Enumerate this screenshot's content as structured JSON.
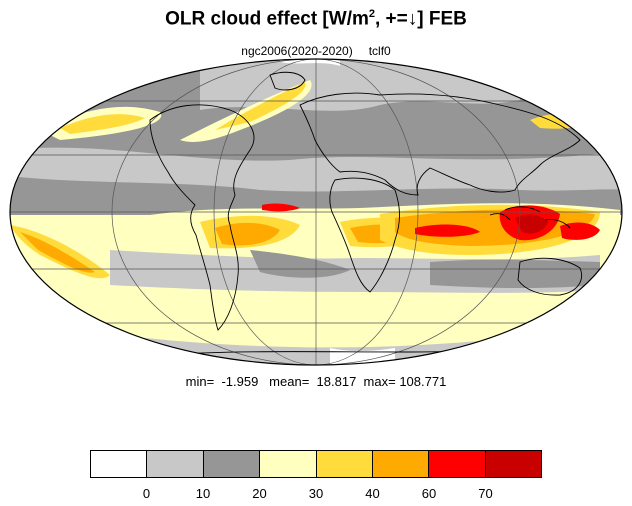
{
  "title": {
    "main": "OLR cloud effect [W/m",
    "sup": "2",
    "rest": ", +=↓]  FEB"
  },
  "subtitle": {
    "left": "ngc2006(2020-2020)",
    "right": "tclf0"
  },
  "stats": {
    "min_label": "min=",
    "min_value": "-1.959",
    "mean_label": "mean=",
    "mean_value": "18.817",
    "max_label": "max=",
    "max_value": "108.771"
  },
  "colorbar": {
    "colors": [
      "#ffffff",
      "#c8c8c8",
      "#969696",
      "#ffffc0",
      "#ffdc3c",
      "#ffaa00",
      "#ff0000",
      "#c80000"
    ],
    "tick_labels": [
      "0",
      "10",
      "20",
      "30",
      "40",
      "60",
      "70"
    ]
  },
  "map_colors": {
    "white": "#ffffff",
    "light_gray": "#c8c8c8",
    "dark_gray": "#969696",
    "pale_yellow": "#ffffc0",
    "yellow": "#ffdc3c",
    "orange": "#ffaa00",
    "red": "#ff0000",
    "dark_red": "#c80000"
  }
}
